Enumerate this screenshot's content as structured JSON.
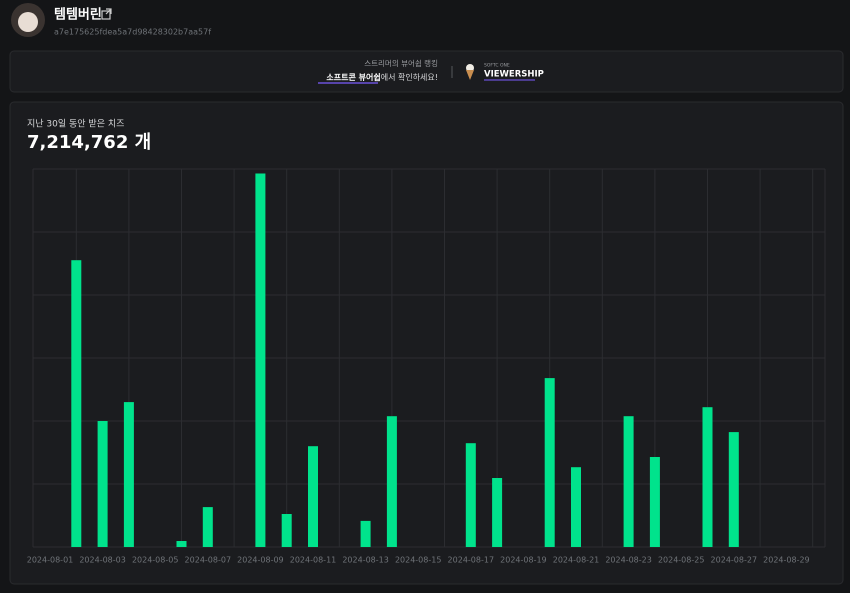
{
  "header": {
    "name": "템템버린",
    "id": "a7e175625fdea5a7d98428302b7aa57f"
  },
  "banner": {
    "line1": "스트리머의 뷰어쉽 랭킹",
    "line2_bold": "소프트콘 뷰어쉽",
    "line2_rest": "에서 확인하세요!",
    "logo_small": "SOFTC ONE",
    "logo": "VIEWERSHIP"
  },
  "chart_data": {
    "type": "bar",
    "title": "지난 30일 동안 받은 치즈",
    "total": "7,214,762 개",
    "categories": [
      "2024-08-01",
      null,
      "2024-08-03",
      null,
      "2024-08-05",
      null,
      "2024-08-07",
      null,
      "2024-08-09",
      null,
      "2024-08-11",
      null,
      "2024-08-13",
      null,
      "2024-08-15",
      null,
      "2024-08-17",
      null,
      "2024-08-19",
      null,
      "2024-08-21",
      null,
      "2024-08-23",
      null,
      "2024-08-25",
      null,
      "2024-08-27",
      null,
      "2024-08-29",
      null
    ],
    "values": [
      0,
      956000,
      420000,
      483000,
      0,
      20000,
      133000,
      0,
      1245000,
      110000,
      336000,
      0,
      87000,
      436000,
      0,
      0,
      346000,
      230000,
      0,
      563000,
      266000,
      0,
      436000,
      300000,
      0,
      466000,
      383000,
      0,
      0,
      0
    ],
    "color": "#00e38c",
    "ylim": [
      0,
      1260000
    ],
    "yticks": [
      0,
      210000,
      420000,
      630000,
      840000,
      1050000,
      1260000
    ],
    "grid": true
  }
}
